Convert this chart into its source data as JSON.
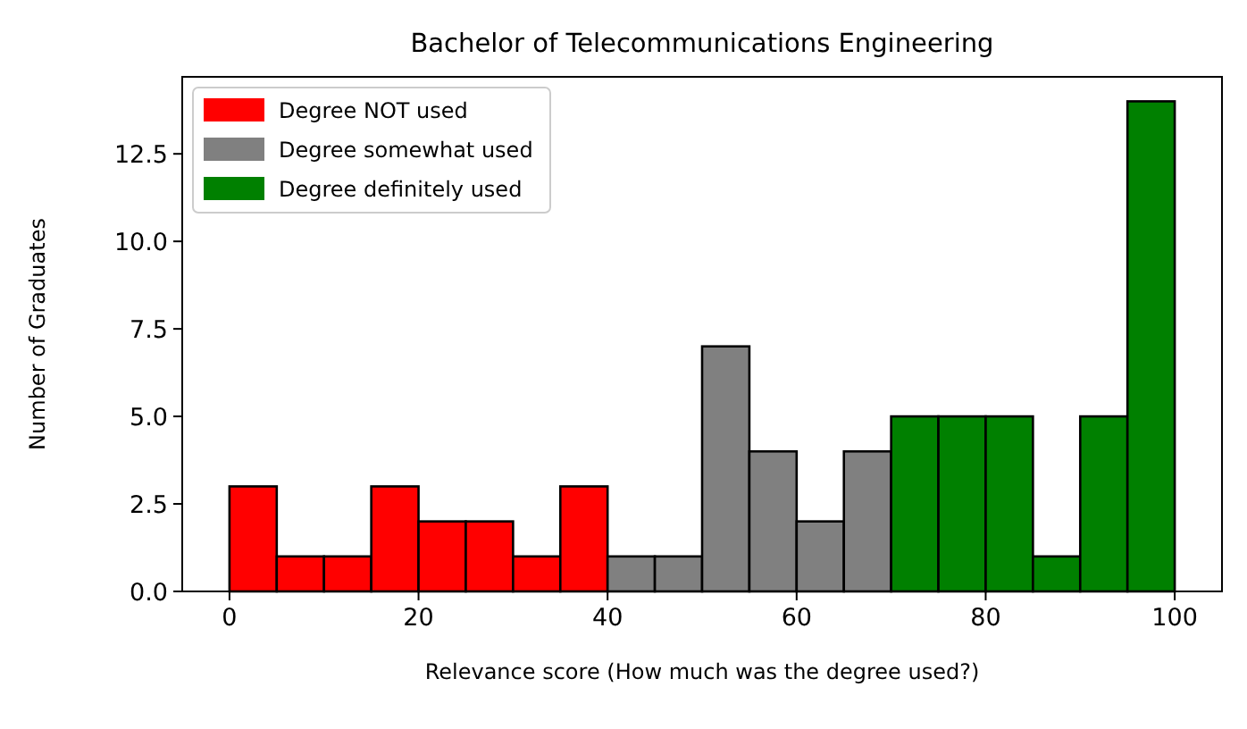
{
  "chart_data": {
    "type": "histogram",
    "title": "Bachelor of Telecommunications Engineering",
    "xlabel": "Relevance score (How much was the degree used?)",
    "ylabel": "Number of Graduates",
    "bins": [
      0,
      5,
      10,
      15,
      20,
      25,
      30,
      35,
      40,
      45,
      50,
      55,
      60,
      65,
      70,
      75,
      80,
      85,
      90,
      95,
      100
    ],
    "series": [
      {
        "name": "Degree NOT used",
        "color": "#ff0000",
        "values": [
          3,
          1,
          1,
          3,
          2,
          2,
          1,
          3,
          null,
          null,
          null,
          null,
          null,
          null,
          null,
          null,
          null,
          null,
          null,
          null
        ]
      },
      {
        "name": "Degree somewhat used",
        "color": "#808080",
        "values": [
          null,
          null,
          null,
          null,
          null,
          null,
          null,
          null,
          1,
          1,
          7,
          4,
          2,
          4,
          null,
          null,
          null,
          null,
          null,
          null
        ]
      },
      {
        "name": "Degree definitely used",
        "color": "#008000",
        "values": [
          null,
          null,
          null,
          null,
          null,
          null,
          null,
          null,
          null,
          null,
          null,
          null,
          null,
          null,
          5,
          5,
          5,
          1,
          5,
          14
        ]
      }
    ],
    "xlim": [
      -5,
      105
    ],
    "ylim": [
      0,
      14.7
    ],
    "xticks": [
      0,
      20,
      40,
      60,
      80,
      100
    ],
    "yticks": [
      {
        "value": 0,
        "label": "0.0"
      },
      {
        "value": 2.5,
        "label": "2.5"
      },
      {
        "value": 5,
        "label": "5.0"
      },
      {
        "value": 7.5,
        "label": "7.5"
      },
      {
        "value": 10,
        "label": "10.0"
      },
      {
        "value": 12.5,
        "label": "12.5"
      }
    ],
    "legend": "top left",
    "grid": false
  }
}
